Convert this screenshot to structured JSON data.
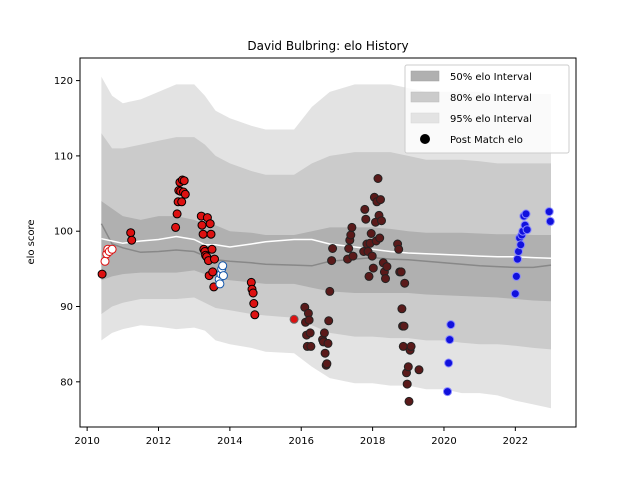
{
  "chart_data": {
    "type": "scatter",
    "title": "David Bulbring: elo History",
    "xlabel": "",
    "ylabel": "elo score",
    "xlim": [
      2009.8,
      2023.7
    ],
    "ylim": [
      74,
      123
    ],
    "x_ticks": [
      2010,
      2012,
      2014,
      2016,
      2018,
      2020,
      2022
    ],
    "y_ticks": [
      80,
      90,
      100,
      110,
      120
    ],
    "grid": false,
    "legend_position": "top-right",
    "legend": [
      {
        "label": "50% elo Interval",
        "kind": "band",
        "color": "#b0b0b0"
      },
      {
        "label": "80% elo Interval",
        "kind": "band",
        "color": "#cbcbcb"
      },
      {
        "label": "95% elo Interval",
        "kind": "band",
        "color": "#e3e3e3"
      },
      {
        "label": "Post Match elo",
        "kind": "marker",
        "color": "#000000"
      }
    ],
    "band_x": [
      2010.4,
      2010.7,
      2011.0,
      2011.5,
      2012.0,
      2012.5,
      2013.0,
      2013.3,
      2013.6,
      2014.0,
      2014.6,
      2015.0,
      2015.8,
      2016.3,
      2016.8,
      2017.5,
      2018.0,
      2018.5,
      2019.0,
      2019.5,
      2020.0,
      2020.5,
      2021.0,
      2021.5,
      2022.0,
      2022.5,
      2023.0
    ],
    "bands": {
      "p95_low": [
        85.5,
        86.5,
        87.0,
        87.5,
        87.3,
        87.0,
        87.2,
        86.8,
        85.5,
        85.0,
        84.5,
        84.0,
        83.8,
        82.0,
        80.5,
        79.8,
        79.8,
        79.5,
        79.5,
        79.0,
        79.0,
        78.5,
        78.5,
        78.2,
        77.5,
        77.0,
        76.5
      ],
      "p80_low": [
        89.0,
        90.0,
        90.5,
        91.0,
        91.0,
        91.0,
        91.2,
        90.5,
        89.8,
        89.5,
        89.0,
        88.8,
        88.5,
        87.5,
        86.5,
        86.0,
        86.0,
        85.8,
        85.8,
        85.5,
        85.5,
        85.2,
        85.0,
        85.0,
        84.8,
        84.5,
        84.3
      ],
      "p50_low": [
        93.5,
        94.0,
        94.3,
        94.5,
        94.5,
        94.5,
        94.8,
        94.3,
        93.8,
        93.5,
        93.2,
        93.0,
        93.0,
        92.5,
        92.0,
        91.8,
        91.8,
        91.8,
        91.8,
        91.6,
        91.5,
        91.4,
        91.3,
        91.2,
        91.0,
        90.8,
        90.7
      ],
      "p50_high": [
        104.0,
        103.0,
        102.0,
        101.5,
        102.0,
        102.0,
        101.5,
        101.0,
        100.8,
        100.0,
        99.8,
        99.5,
        99.5,
        100.0,
        100.5,
        100.5,
        100.5,
        100.3,
        100.0,
        99.8,
        99.8,
        99.8,
        99.7,
        99.6,
        99.6,
        99.5,
        99.5
      ],
      "p80_high": [
        113.0,
        111.0,
        111.0,
        111.5,
        112.0,
        112.5,
        112.5,
        111.5,
        110.0,
        109.0,
        108.0,
        107.5,
        107.5,
        109.0,
        110.0,
        110.5,
        110.5,
        110.5,
        110.0,
        109.5,
        109.5,
        109.5,
        109.3,
        109.0,
        109.0,
        109.0,
        109.0
      ],
      "p95_high": [
        120.5,
        118.0,
        117.0,
        117.5,
        118.5,
        119.5,
        119.5,
        118.0,
        116.0,
        115.0,
        114.0,
        113.5,
        113.5,
        116.5,
        118.5,
        119.5,
        119.5,
        119.5,
        119.0,
        118.5,
        118.5,
        118.5,
        118.5,
        118.3,
        118.2,
        118.2,
        118.2
      ]
    },
    "series": [
      {
        "kind": "line",
        "color": "#888888",
        "x": [
          2010.4,
          2010.7,
          2011.0,
          2011.5,
          2012.0,
          2012.5,
          2013.0,
          2013.3,
          2013.6,
          2014.0,
          2014.6,
          2015.0,
          2015.8,
          2016.3,
          2016.8,
          2017.5,
          2018.0,
          2018.5,
          2019.0,
          2019.5,
          2020.0,
          2020.5,
          2021.0,
          2021.5,
          2022.0,
          2022.5,
          2023.0
        ],
        "y": [
          101.0,
          98.3,
          97.8,
          97.2,
          97.3,
          97.5,
          97.3,
          96.7,
          96.2,
          96.0,
          95.8,
          95.6,
          95.5,
          95.4,
          96.0,
          96.3,
          96.5,
          96.3,
          96.2,
          96.0,
          95.8,
          95.6,
          95.4,
          95.3,
          95.2,
          95.2,
          95.5
        ]
      },
      {
        "kind": "line",
        "color": "#ffffff",
        "x": [
          2010.4,
          2010.7,
          2011.0,
          2011.5,
          2012.0,
          2012.5,
          2013.0,
          2013.3,
          2013.6,
          2014.0,
          2014.6,
          2015.0,
          2015.8,
          2016.3,
          2016.8,
          2017.5,
          2018.0,
          2018.5,
          2019.0,
          2019.5,
          2020.0,
          2020.5,
          2021.0,
          2021.5,
          2022.0,
          2022.5,
          2023.0
        ],
        "y": [
          99.0,
          98.7,
          98.4,
          98.7,
          98.9,
          99.3,
          98.9,
          98.2,
          98.2,
          97.9,
          98.3,
          98.6,
          98.9,
          98.9,
          98.3,
          97.9,
          97.6,
          97.3,
          97.1,
          97.0,
          96.9,
          96.8,
          96.7,
          96.6,
          96.6,
          96.5,
          96.4
        ]
      },
      {
        "kind": "points",
        "fill": "#dd1111",
        "stroke": "#000000",
        "points": [
          [
            2010.42,
            94.3
          ],
          [
            2011.22,
            99.8
          ],
          [
            2011.25,
            98.8
          ],
          [
            2012.48,
            100.5
          ],
          [
            2012.52,
            102.3
          ],
          [
            2012.55,
            103.9
          ],
          [
            2012.57,
            105.4
          ],
          [
            2012.6,
            106.5
          ],
          [
            2012.62,
            105.3
          ],
          [
            2012.65,
            103.9
          ],
          [
            2012.67,
            106.8
          ],
          [
            2012.7,
            105.2
          ],
          [
            2012.72,
            106.7
          ],
          [
            2012.75,
            104.9
          ],
          [
            2013.2,
            102.0
          ],
          [
            2013.22,
            100.8
          ],
          [
            2013.25,
            99.6
          ],
          [
            2013.27,
            97.6
          ],
          [
            2013.3,
            97.3
          ],
          [
            2013.32,
            96.8
          ],
          [
            2013.35,
            96.6
          ],
          [
            2013.37,
            101.8
          ],
          [
            2013.4,
            96.1
          ],
          [
            2013.42,
            94.1
          ],
          [
            2013.45,
            101.0
          ],
          [
            2013.47,
            99.6
          ],
          [
            2013.5,
            97.6
          ],
          [
            2013.52,
            94.6
          ],
          [
            2013.55,
            92.6
          ],
          [
            2013.57,
            96.3
          ],
          [
            2014.6,
            93.2
          ],
          [
            2014.62,
            92.3
          ],
          [
            2014.65,
            91.8
          ],
          [
            2014.67,
            90.4
          ],
          [
            2014.7,
            88.9
          ]
        ]
      },
      {
        "kind": "points",
        "fill": "#ffffff",
        "stroke": "#dd1111",
        "points": [
          [
            2010.5,
            96.0
          ],
          [
            2010.55,
            97.0
          ],
          [
            2010.58,
            97.6
          ],
          [
            2010.62,
            97.3
          ],
          [
            2010.7,
            97.6
          ]
        ]
      },
      {
        "kind": "points",
        "fill": "#ffffff",
        "stroke": "#1155aa",
        "points": [
          [
            2013.7,
            93.6
          ],
          [
            2013.72,
            93.0
          ],
          [
            2013.75,
            94.3
          ],
          [
            2013.77,
            95.0
          ],
          [
            2013.8,
            95.4
          ],
          [
            2013.82,
            94.1
          ]
        ]
      },
      {
        "kind": "points",
        "fill": "#dd1111",
        "stroke": "#666666",
        "points": [
          [
            2015.8,
            88.3
          ]
        ]
      },
      {
        "kind": "points",
        "fill": "#5a1a1a",
        "stroke": "#222222",
        "points": [
          [
            2016.1,
            89.9
          ],
          [
            2016.12,
            87.9
          ],
          [
            2016.15,
            86.2
          ],
          [
            2016.17,
            84.7
          ],
          [
            2016.2,
            89.1
          ],
          [
            2016.22,
            88.2
          ],
          [
            2016.25,
            86.5
          ],
          [
            2016.27,
            84.7
          ],
          [
            2016.6,
            85.6
          ],
          [
            2016.62,
            85.3
          ],
          [
            2016.65,
            86.5
          ],
          [
            2016.67,
            83.8
          ],
          [
            2016.7,
            82.2
          ],
          [
            2016.72,
            82.4
          ],
          [
            2016.75,
            85.1
          ],
          [
            2016.77,
            88.1
          ],
          [
            2016.8,
            92.0
          ],
          [
            2016.85,
            96.1
          ],
          [
            2016.88,
            97.7
          ],
          [
            2017.3,
            96.3
          ],
          [
            2017.33,
            97.7
          ],
          [
            2017.36,
            98.8
          ],
          [
            2017.39,
            99.5
          ],
          [
            2017.42,
            100.5
          ],
          [
            2017.45,
            96.7
          ],
          [
            2017.75,
            97.3
          ],
          [
            2017.78,
            102.9
          ],
          [
            2017.81,
            101.6
          ],
          [
            2017.84,
            98.3
          ],
          [
            2017.87,
            97.3
          ],
          [
            2017.9,
            94.0
          ],
          [
            2017.93,
            98.4
          ],
          [
            2017.96,
            99.7
          ],
          [
            2017.99,
            96.7
          ],
          [
            2018.02,
            95.1
          ],
          [
            2018.05,
            104.5
          ],
          [
            2018.08,
            101.2
          ],
          [
            2018.1,
            98.7
          ],
          [
            2018.12,
            103.9
          ],
          [
            2018.15,
            107.0
          ],
          [
            2018.18,
            102.1
          ],
          [
            2018.2,
            99.1
          ],
          [
            2018.22,
            104.2
          ],
          [
            2018.25,
            101.4
          ],
          [
            2018.3,
            95.8
          ],
          [
            2018.33,
            94.6
          ],
          [
            2018.36,
            93.7
          ],
          [
            2018.4,
            95.3
          ],
          [
            2018.7,
            98.3
          ],
          [
            2018.73,
            97.6
          ],
          [
            2018.76,
            94.6
          ],
          [
            2018.8,
            94.6
          ],
          [
            2018.82,
            89.7
          ],
          [
            2018.84,
            87.4
          ],
          [
            2018.86,
            84.7
          ],
          [
            2018.88,
            87.4
          ],
          [
            2018.9,
            93.1
          ],
          [
            2018.95,
            81.2
          ],
          [
            2018.97,
            79.7
          ],
          [
            2019.0,
            82.0
          ],
          [
            2019.02,
            77.4
          ],
          [
            2019.05,
            84.2
          ],
          [
            2019.08,
            84.7
          ],
          [
            2019.3,
            81.6
          ]
        ]
      },
      {
        "kind": "points",
        "fill": "#1111dd",
        "stroke": "#8888ff",
        "points": [
          [
            2020.1,
            78.7
          ],
          [
            2020.13,
            82.5
          ],
          [
            2020.16,
            85.6
          ],
          [
            2020.19,
            87.6
          ],
          [
            2022.0,
            91.7
          ],
          [
            2022.03,
            94.0
          ],
          [
            2022.06,
            96.3
          ],
          [
            2022.09,
            97.3
          ],
          [
            2022.12,
            99.1
          ],
          [
            2022.15,
            98.2
          ],
          [
            2022.18,
            99.5
          ],
          [
            2022.21,
            100.0
          ],
          [
            2022.24,
            102.0
          ],
          [
            2022.27,
            100.8
          ],
          [
            2022.3,
            102.3
          ],
          [
            2022.33,
            100.2
          ],
          [
            2022.95,
            102.6
          ],
          [
            2022.98,
            101.3
          ]
        ]
      }
    ]
  }
}
